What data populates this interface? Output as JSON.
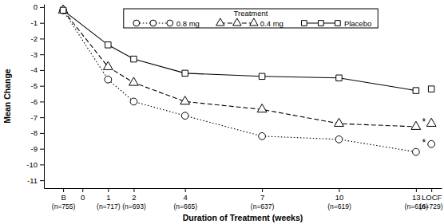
{
  "chart_data": {
    "type": "line",
    "xlabel": "Duration of Treatment (weeks)",
    "ylabel": "Mean Change",
    "legend_title": "Treatment",
    "legend": "top",
    "grid": false,
    "x": [
      -0.75,
      1,
      2,
      4,
      7,
      10,
      13
    ],
    "locf_x": 13.6,
    "xlim": [
      -1.5,
      14
    ],
    "xticks": [
      {
        "value": -0.75,
        "label": "B"
      },
      0,
      1,
      2,
      4,
      7,
      10,
      13,
      {
        "value": 13.6,
        "label": "LOCF"
      }
    ],
    "xtick_counts": [
      "(n=755)",
      null,
      "(n=717)",
      "(n=693)",
      "(n=665)",
      "(n=637)",
      "(n=619)",
      "(n=616)",
      "(n=729)"
    ],
    "ylim": [
      -11.5,
      0.2
    ],
    "yticks": [
      0,
      -1,
      -2,
      -3,
      -4,
      -5,
      -6,
      -7,
      -8,
      -9,
      -10,
      -11
    ],
    "series": [
      {
        "name": "0.8 mg",
        "color": "#000000",
        "marker": "circle",
        "line_style": "dotted",
        "values": [
          -0.2,
          -4.6,
          -6.0,
          -6.9,
          -8.2,
          -8.4,
          -9.2
        ],
        "locf": -8.7,
        "locf_note": "*"
      },
      {
        "name": "0.4 mg",
        "color": "#000000",
        "marker": "triangle",
        "line_style": "dashed",
        "values": [
          -0.2,
          -3.8,
          -4.8,
          -6.0,
          -6.5,
          -7.4,
          -7.6
        ],
        "locf": -7.4,
        "locf_note": "*"
      },
      {
        "name": "Placebo",
        "color": "#000000",
        "marker": "square",
        "line_style": "solid",
        "values": [
          -0.2,
          -2.4,
          -3.3,
          -4.2,
          -4.4,
          -4.5,
          -5.3
        ],
        "locf": -5.2
      }
    ]
  }
}
